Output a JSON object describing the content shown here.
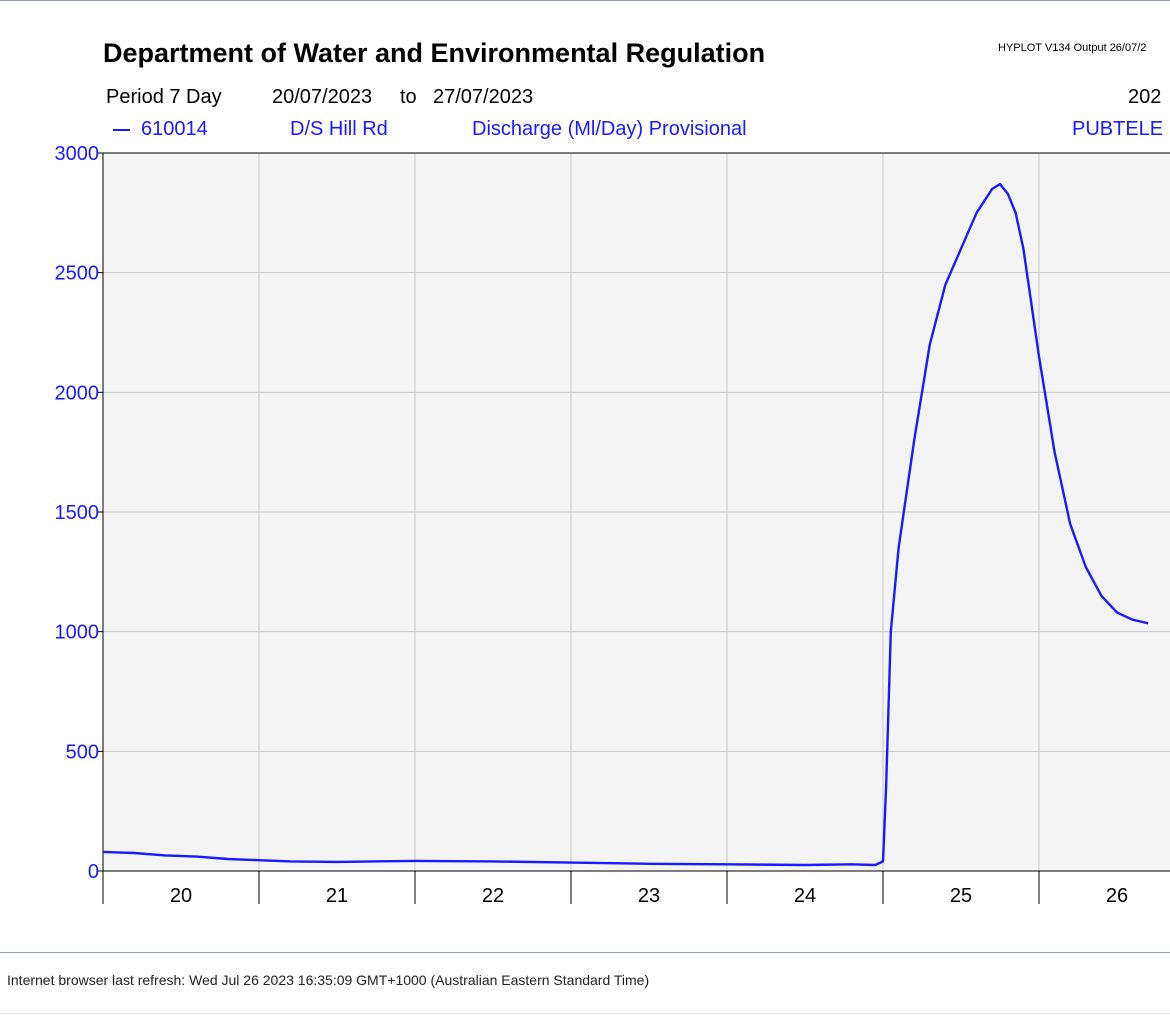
{
  "header": {
    "title": "Department of Water and Environmental Regulation",
    "hyplot": "HYPLOT V134  Output 26/07/2",
    "period_label": "Period 7 Day",
    "date_from": "20/07/2023",
    "to_label": "to",
    "date_to": "27/07/2023",
    "year_partial": "202"
  },
  "legend": {
    "station": "610014",
    "site": "D/S Hill Rd",
    "variable": "Discharge (Ml/Day) Provisional",
    "source_partial": "PUBTELE"
  },
  "footer": {
    "refresh_text": "Internet browser last refresh: Wed Jul 26 2023 16:35:09 GMT+1000 (Australian Eastern Standard Time)"
  },
  "colors": {
    "series": "#1a1aff",
    "plot_bg": "#f4f4f4",
    "grid": "#c8c8c8"
  },
  "chart_data": {
    "type": "line",
    "title": "Department of Water and Environmental Regulation",
    "xlabel": "",
    "ylabel": "",
    "ylim": [
      0,
      3000
    ],
    "xlim_days": [
      20,
      27
    ],
    "x_ticks": [
      "20",
      "21",
      "22",
      "23",
      "24",
      "25",
      "26"
    ],
    "y_ticks": [
      0,
      500,
      1000,
      1500,
      2000,
      2500,
      3000
    ],
    "grid": true,
    "series": [
      {
        "name": "610014",
        "x_day": [
          20.0,
          20.2,
          20.4,
          20.6,
          20.8,
          21.0,
          21.2,
          21.5,
          22.0,
          22.5,
          23.0,
          23.5,
          24.0,
          24.5,
          24.8,
          24.95,
          25.0,
          25.02,
          25.05,
          25.1,
          25.2,
          25.3,
          25.4,
          25.5,
          25.6,
          25.7,
          25.75,
          25.8,
          25.85,
          25.9,
          26.0,
          26.1,
          26.2,
          26.3,
          26.4,
          26.5,
          26.6,
          26.7
        ],
        "y": [
          80,
          75,
          65,
          60,
          50,
          45,
          40,
          38,
          42,
          40,
          35,
          30,
          28,
          25,
          28,
          25,
          40,
          350,
          1000,
          1350,
          1800,
          2200,
          2450,
          2600,
          2750,
          2850,
          2870,
          2830,
          2750,
          2600,
          2150,
          1750,
          1450,
          1270,
          1150,
          1080,
          1050,
          1035
        ]
      }
    ]
  }
}
